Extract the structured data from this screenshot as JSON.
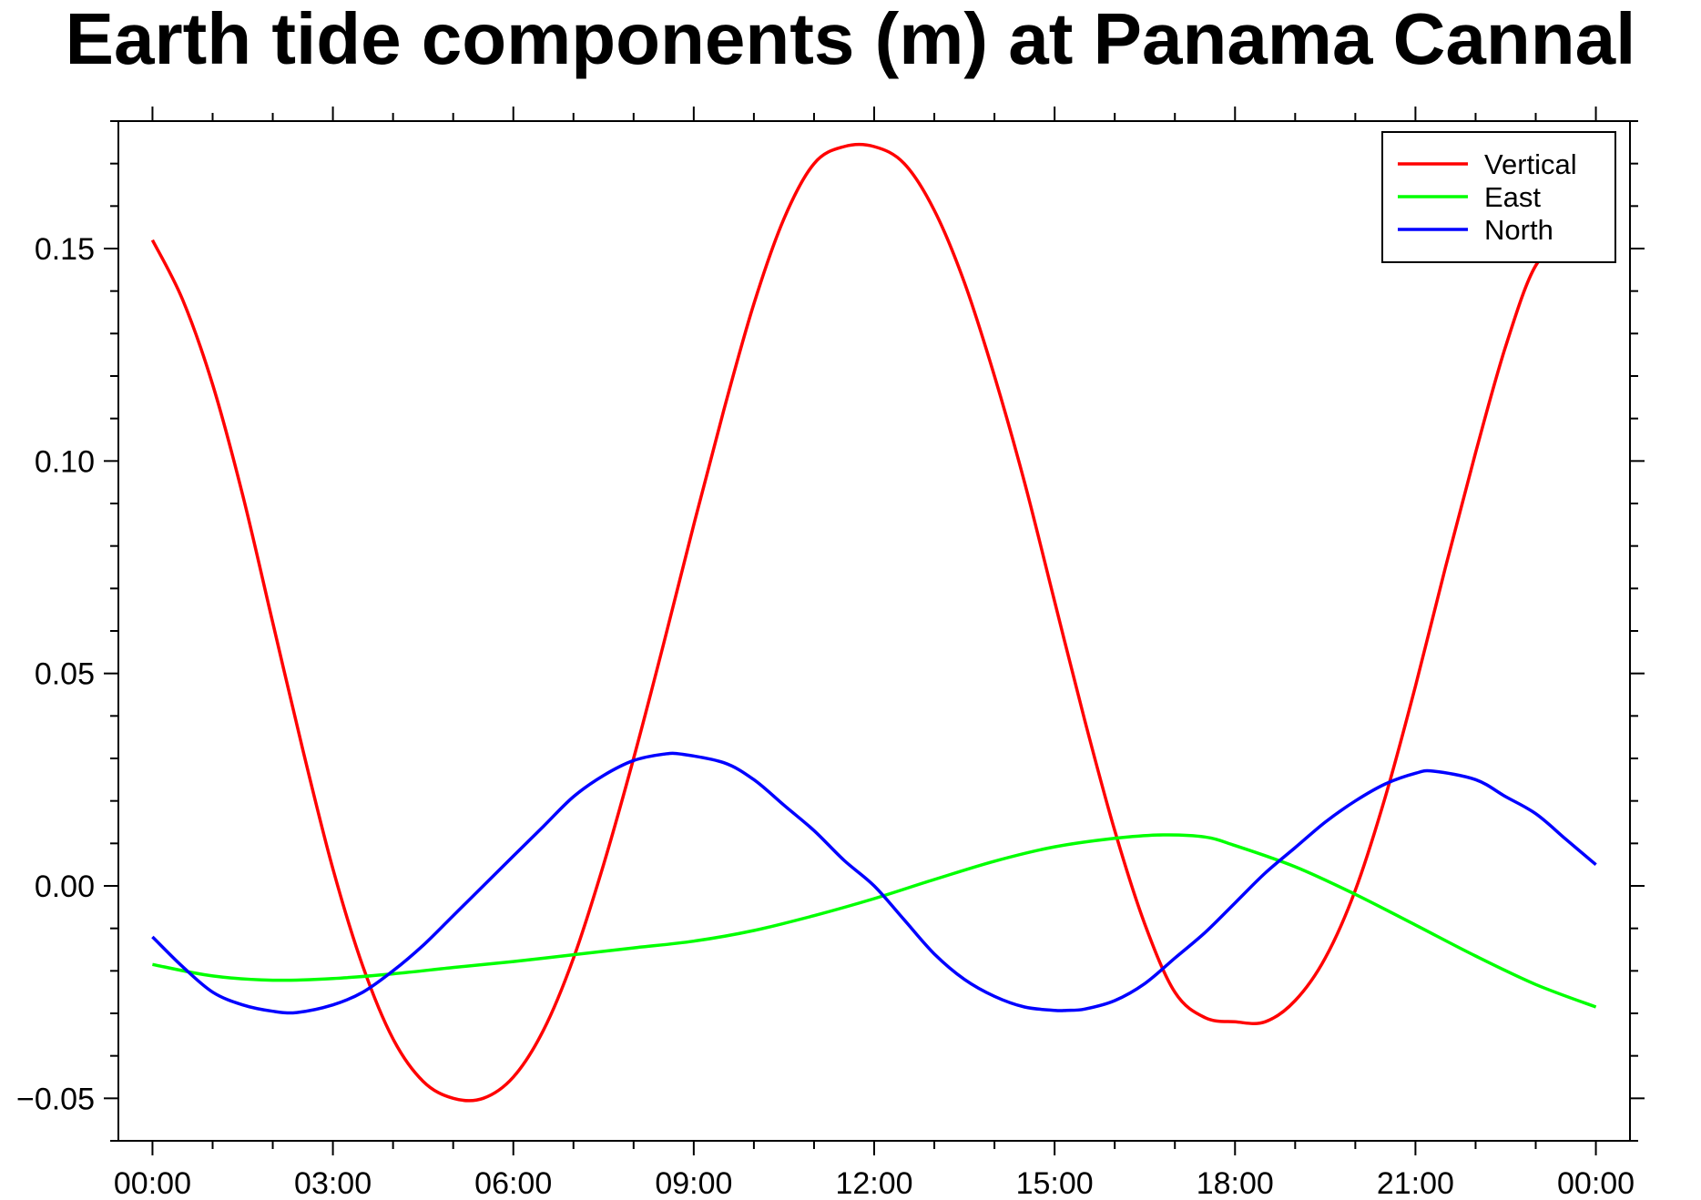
{
  "chart_data": {
    "type": "line",
    "title": "Earth tide components (m) at Panama Cannal",
    "xlabel": "",
    "ylabel": "",
    "x_tick_labels": [
      "00:00",
      "03:00",
      "06:00",
      "09:00",
      "12:00",
      "15:00",
      "18:00",
      "21:00",
      "00:00"
    ],
    "y_tick_labels": [
      "−0.05",
      "0.00",
      "0.05",
      "0.10",
      "0.15"
    ],
    "xlim_hours": [
      -0.567,
      24.567
    ],
    "ylim": [
      -0.06,
      0.18
    ],
    "grid": false,
    "legend_position": "top-right",
    "series": [
      {
        "name": "Vertical",
        "color": "#ff0000",
        "x_hours": [
          0,
          0.5,
          1,
          1.5,
          2,
          2.5,
          3,
          3.5,
          4,
          4.5,
          5,
          5.5,
          6,
          6.5,
          7,
          7.5,
          8,
          8.5,
          9,
          9.5,
          10,
          10.5,
          11,
          11.5,
          12,
          12.5,
          13,
          13.5,
          14,
          14.5,
          15,
          15.5,
          16,
          16.5,
          17,
          17.5,
          18,
          18.5,
          19,
          19.5,
          20,
          20.5,
          21,
          21.5,
          22,
          22.5,
          23,
          23.5,
          24
        ],
        "values": [
          0.152,
          0.138,
          0.118,
          0.092,
          0.062,
          0.032,
          0.004,
          -0.019,
          -0.036,
          -0.046,
          -0.05,
          -0.05,
          -0.045,
          -0.034,
          -0.017,
          0.005,
          0.03,
          0.057,
          0.085,
          0.112,
          0.137,
          0.157,
          0.17,
          0.174,
          0.174,
          0.17,
          0.159,
          0.142,
          0.12,
          0.095,
          0.067,
          0.039,
          0.013,
          -0.009,
          -0.025,
          -0.031,
          -0.032,
          -0.032,
          -0.027,
          -0.017,
          -0.001,
          0.021,
          0.047,
          0.075,
          0.102,
          0.127,
          0.146,
          0.151,
          0.15
        ]
      },
      {
        "name": "East",
        "color": "#00ff00",
        "x_hours": [
          0,
          1,
          2,
          3,
          4,
          5,
          6,
          7,
          8,
          9,
          10,
          11,
          12,
          13,
          14,
          15,
          16,
          16.8,
          17.5,
          18,
          19,
          20,
          21,
          22,
          23,
          24
        ],
        "values": [
          -0.0185,
          -0.0212,
          -0.0222,
          -0.0218,
          -0.0207,
          -0.0192,
          -0.0178,
          -0.0162,
          -0.0146,
          -0.013,
          -0.0105,
          -0.007,
          -0.003,
          0.0015,
          0.0058,
          0.0092,
          0.0112,
          0.012,
          0.0115,
          0.0095,
          0.0045,
          -0.002,
          -0.0092,
          -0.0165,
          -0.0232,
          -0.0285
        ]
      },
      {
        "name": "North",
        "color": "#0000ff",
        "x_hours": [
          0,
          0.5,
          1,
          1.5,
          2,
          2.4,
          3,
          3.5,
          4,
          4.5,
          5,
          5.5,
          6,
          6.5,
          7,
          7.5,
          8,
          8.5,
          8.8,
          9.5,
          10,
          10.5,
          11,
          11.5,
          12,
          12.5,
          13,
          13.5,
          14,
          14.5,
          15,
          15.2,
          15.5,
          16,
          16.5,
          17,
          17.5,
          18,
          18.5,
          19,
          19.5,
          20,
          20.5,
          21,
          21.3,
          22,
          22.5,
          23,
          23.5,
          24
        ],
        "values": [
          -0.012,
          -0.019,
          -0.025,
          -0.028,
          -0.0295,
          -0.0298,
          -0.028,
          -0.025,
          -0.02,
          -0.014,
          -0.007,
          0.0,
          0.007,
          0.014,
          0.021,
          0.026,
          0.0295,
          0.031,
          0.031,
          0.029,
          0.025,
          0.019,
          0.013,
          0.006,
          0.0,
          -0.008,
          -0.016,
          -0.022,
          -0.026,
          -0.0285,
          -0.0293,
          -0.0293,
          -0.029,
          -0.027,
          -0.023,
          -0.017,
          -0.011,
          -0.004,
          0.003,
          0.009,
          0.015,
          0.02,
          0.024,
          0.0265,
          0.027,
          0.025,
          0.021,
          0.017,
          0.011,
          0.005
        ]
      }
    ]
  }
}
